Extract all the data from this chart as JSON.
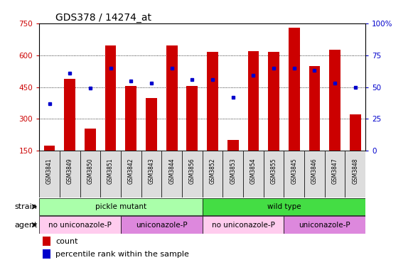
{
  "title": "GDS378 / 14274_at",
  "samples": [
    "GSM3841",
    "GSM3849",
    "GSM3850",
    "GSM3851",
    "GSM3842",
    "GSM3843",
    "GSM3844",
    "GSM3856",
    "GSM3852",
    "GSM3853",
    "GSM3854",
    "GSM3855",
    "GSM3845",
    "GSM3846",
    "GSM3847",
    "GSM3848"
  ],
  "counts": [
    175,
    490,
    255,
    645,
    455,
    400,
    645,
    455,
    615,
    200,
    620,
    615,
    730,
    550,
    625,
    320
  ],
  "percentiles": [
    37,
    61,
    49,
    65,
    55,
    53,
    65,
    56,
    56,
    42,
    59,
    65,
    65,
    63,
    53,
    50
  ],
  "ylim_left": [
    150,
    750
  ],
  "ylim_right": [
    0,
    100
  ],
  "yticks_left": [
    150,
    300,
    450,
    600,
    750
  ],
  "yticks_right": [
    0,
    25,
    50,
    75,
    100
  ],
  "strain_groups": [
    {
      "label": "pickle mutant",
      "start": 0,
      "end": 8,
      "color": "#aaffaa"
    },
    {
      "label": "wild type",
      "start": 8,
      "end": 16,
      "color": "#44dd44"
    }
  ],
  "agent_groups": [
    {
      "label": "no uniconazole-P",
      "start": 0,
      "end": 4,
      "color": "#ffccee"
    },
    {
      "label": "uniconazole-P",
      "start": 4,
      "end": 8,
      "color": "#dd88dd"
    },
    {
      "label": "no uniconazole-P",
      "start": 8,
      "end": 12,
      "color": "#ffccee"
    },
    {
      "label": "uniconazole-P",
      "start": 12,
      "end": 16,
      "color": "#dd88dd"
    }
  ],
  "bar_color": "#cc0000",
  "dot_color": "#0000cc",
  "background_color": "#ffffff",
  "left_axis_color": "#cc0000",
  "right_axis_color": "#0000cc",
  "grid_dotted_color": "#555555",
  "separator_color": "#888888"
}
